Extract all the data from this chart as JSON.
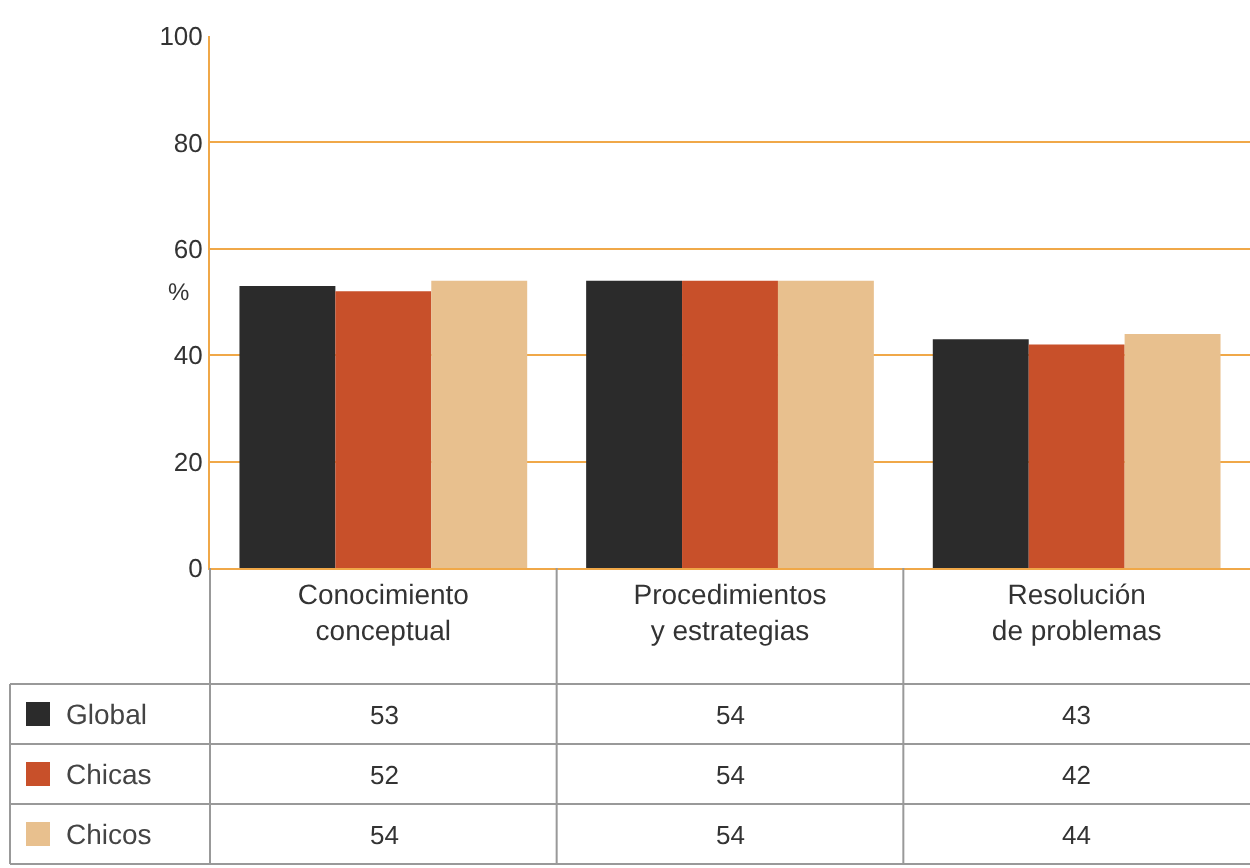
{
  "chart_data": {
    "type": "bar",
    "ylabel": "%",
    "categories": [
      "Conocimiento\nconceptual",
      "Procedimientos\ny estrategias",
      "Resolución\nde problemas"
    ],
    "series": [
      {
        "name": "Global",
        "color": "#2b2b2b",
        "values": [
          53,
          54,
          43
        ]
      },
      {
        "name": "Chicas",
        "color": "#c8502a",
        "values": [
          52,
          54,
          42
        ]
      },
      {
        "name": "Chicos",
        "color": "#e8c08e",
        "values": [
          54,
          54,
          44
        ]
      }
    ],
    "ylim": [
      0,
      100
    ],
    "yticks": [
      0,
      20,
      40,
      60,
      80,
      100
    ],
    "grid": "y",
    "legend": "bottom left",
    "data_labels": true
  }
}
